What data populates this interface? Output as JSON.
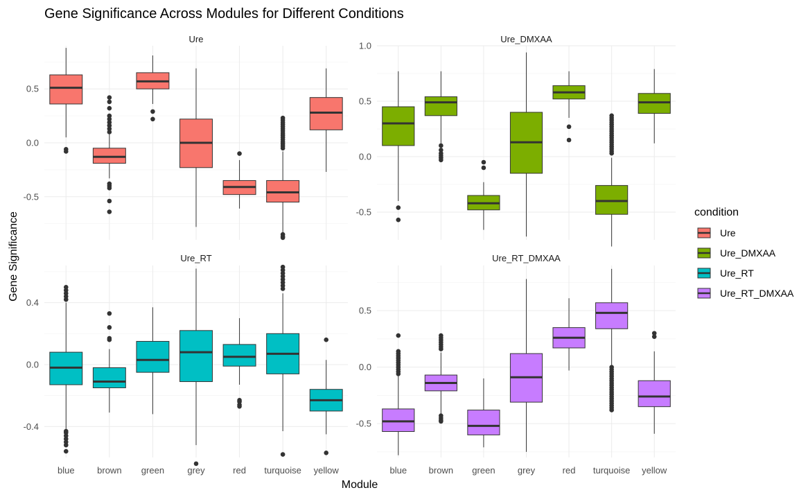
{
  "chart_data": {
    "type": "boxplot",
    "title": "Gene Significance Across Modules for Different Conditions",
    "xlabel": "Module",
    "ylabel": "Gene Significance",
    "categories": [
      "blue",
      "brown",
      "green",
      "grey",
      "red",
      "turquoise",
      "yellow"
    ],
    "legend": {
      "title": "condition",
      "placement": "right",
      "entries": [
        {
          "label": "Ure",
          "color": "#F8766D"
        },
        {
          "label": "Ure_DMXAA",
          "color": "#7CAE00"
        },
        {
          "label": "Ure_RT",
          "color": "#00BFC4"
        },
        {
          "label": "Ure_RT_DMXAA",
          "color": "#C77CFF"
        }
      ]
    },
    "grid": true,
    "panels": [
      {
        "name": "Ure",
        "color": "#F8766D",
        "ylim": [
          -0.9,
          0.9
        ],
        "yticks": [
          -0.5,
          0.0,
          0.5
        ],
        "ytick_labels": [
          "-0.5",
          "0.0",
          "0.5"
        ],
        "show_y_labels": true,
        "show_x_labels": false,
        "boxes": [
          {
            "module": "blue",
            "q1": 0.36,
            "median": 0.51,
            "q3": 0.63,
            "lower": 0.05,
            "upper": 0.88,
            "outliers": [
              -0.06,
              -0.08
            ]
          },
          {
            "module": "brown",
            "q1": -0.19,
            "median": -0.13,
            "q3": -0.05,
            "lower": -0.33,
            "upper": 0.08,
            "outliers": [
              0.42,
              0.38,
              0.32,
              0.25,
              0.22,
              0.19,
              0.16,
              0.13,
              0.1,
              -0.38,
              -0.4,
              -0.42,
              -0.54,
              -0.64
            ]
          },
          {
            "module": "green",
            "q1": 0.5,
            "median": 0.57,
            "q3": 0.65,
            "lower": 0.36,
            "upper": 0.81,
            "outliers": [
              0.29,
              0.22
            ]
          },
          {
            "module": "grey",
            "q1": -0.23,
            "median": 0.0,
            "q3": 0.22,
            "lower": -0.78,
            "upper": 0.69
          },
          {
            "module": "red",
            "q1": -0.48,
            "median": -0.41,
            "q3": -0.35,
            "lower": -0.61,
            "upper": -0.16,
            "outliers": [
              -0.1
            ]
          },
          {
            "module": "turquoise",
            "q1": -0.55,
            "median": -0.46,
            "q3": -0.35,
            "lower": -0.83,
            "upper": -0.08,
            "outliers": [
              0.23,
              0.21,
              0.19,
              0.17,
              0.15,
              0.13,
              0.11,
              0.09,
              0.07,
              0.05,
              0.03,
              0.01,
              -0.01,
              -0.03,
              -0.05,
              -0.85,
              -0.87,
              -0.88
            ]
          },
          {
            "module": "yellow",
            "q1": 0.12,
            "median": 0.28,
            "q3": 0.42,
            "lower": -0.27,
            "upper": 0.69
          }
        ]
      },
      {
        "name": "Ure_DMXAA",
        "color": "#7CAE00",
        "ylim": [
          -0.75,
          1.0
        ],
        "yticks": [
          -0.5,
          0.0,
          0.5,
          1.0
        ],
        "ytick_labels": [
          "-0.5",
          "0.0",
          "0.5",
          "1.0"
        ],
        "show_y_labels": true,
        "show_x_labels": false,
        "boxes": [
          {
            "module": "blue",
            "q1": 0.1,
            "median": 0.3,
            "q3": 0.45,
            "lower": -0.4,
            "upper": 0.77,
            "outliers": [
              -0.46,
              -0.57
            ]
          },
          {
            "module": "brown",
            "q1": 0.37,
            "median": 0.49,
            "q3": 0.54,
            "lower": 0.12,
            "upper": 0.77,
            "outliers": [
              0.1,
              0.06,
              0.03,
              0.01,
              -0.01,
              -0.03
            ]
          },
          {
            "module": "green",
            "q1": -0.48,
            "median": -0.42,
            "q3": -0.35,
            "lower": -0.66,
            "upper": -0.23,
            "outliers": [
              -0.05,
              -0.1
            ]
          },
          {
            "module": "grey",
            "q1": -0.15,
            "median": 0.13,
            "q3": 0.4,
            "lower": -0.72,
            "upper": 0.94
          },
          {
            "module": "red",
            "q1": 0.52,
            "median": 0.58,
            "q3": 0.64,
            "lower": 0.35,
            "upper": 0.77,
            "outliers": [
              0.27,
              0.15
            ]
          },
          {
            "module": "turquoise",
            "q1": -0.52,
            "median": -0.4,
            "q3": -0.26,
            "lower": -0.81,
            "upper": -0.01,
            "outliers": [
              0.37,
              0.35,
              0.33,
              0.31,
              0.29,
              0.27,
              0.25,
              0.23,
              0.21,
              0.19,
              0.17,
              0.15,
              0.13,
              0.11,
              0.09,
              0.07,
              0.05,
              0.03
            ]
          },
          {
            "module": "yellow",
            "q1": 0.39,
            "median": 0.49,
            "q3": 0.57,
            "lower": 0.12,
            "upper": 0.79
          }
        ]
      },
      {
        "name": "Ure_RT",
        "color": "#00BFC4",
        "ylim": [
          -0.6,
          0.64
        ],
        "yticks": [
          -0.4,
          0.0,
          0.4
        ],
        "ytick_labels": [
          "-0.4",
          "0.0",
          "0.4"
        ],
        "show_y_labels": true,
        "show_x_labels": true,
        "boxes": [
          {
            "module": "blue",
            "q1": -0.13,
            "median": -0.02,
            "q3": 0.08,
            "lower": -0.42,
            "upper": 0.4,
            "outliers": [
              0.5,
              0.48,
              0.46,
              0.44,
              0.42,
              -0.43,
              -0.44,
              -0.46,
              -0.48,
              -0.5,
              -0.52,
              -0.56
            ]
          },
          {
            "module": "brown",
            "q1": -0.15,
            "median": -0.11,
            "q3": -0.02,
            "lower": -0.31,
            "upper": 0.1,
            "outliers": [
              0.33,
              0.24,
              0.17,
              0.16
            ]
          },
          {
            "module": "green",
            "q1": -0.05,
            "median": 0.03,
            "q3": 0.15,
            "lower": -0.32,
            "upper": 0.37
          },
          {
            "module": "grey",
            "q1": -0.11,
            "median": 0.08,
            "q3": 0.22,
            "lower": -0.52,
            "upper": 0.62,
            "outliers": [
              -0.64
            ]
          },
          {
            "module": "red",
            "q1": -0.01,
            "median": 0.05,
            "q3": 0.13,
            "lower": -0.13,
            "upper": 0.3,
            "outliers": [
              -0.23,
              -0.24,
              -0.26,
              -0.27
            ]
          },
          {
            "module": "turquoise",
            "q1": -0.06,
            "median": 0.07,
            "q3": 0.2,
            "lower": -0.43,
            "upper": 0.46,
            "outliers": [
              0.63,
              0.61,
              0.59,
              0.57,
              0.55,
              0.53,
              0.51,
              0.49,
              -0.58
            ]
          },
          {
            "module": "yellow",
            "q1": -0.3,
            "median": -0.23,
            "q3": -0.16,
            "lower": -0.45,
            "upper": 0.03,
            "outliers": [
              0.16,
              -0.57
            ]
          }
        ]
      },
      {
        "name": "Ure_RT_DMXAA",
        "color": "#C77CFF",
        "ylim": [
          -0.8,
          0.9
        ],
        "yticks": [
          -0.5,
          0.0,
          0.5
        ],
        "ytick_labels": [
          "-0.5",
          "0.0",
          "0.5"
        ],
        "show_y_labels": true,
        "show_x_labels": true,
        "boxes": [
          {
            "module": "blue",
            "q1": -0.57,
            "median": -0.48,
            "q3": -0.37,
            "lower": -0.78,
            "upper": -0.08,
            "outliers": [
              0.28,
              0.14,
              0.12,
              0.1,
              0.08,
              0.06,
              0.04,
              0.02,
              0.0,
              -0.02,
              -0.04,
              -0.06
            ]
          },
          {
            "module": "brown",
            "q1": -0.21,
            "median": -0.14,
            "q3": -0.07,
            "lower": -0.42,
            "upper": 0.13,
            "outliers": [
              0.28,
              0.26,
              0.24,
              0.22,
              0.2,
              0.18,
              0.16,
              -0.43,
              -0.45,
              -0.47,
              -0.48
            ]
          },
          {
            "module": "green",
            "q1": -0.6,
            "median": -0.52,
            "q3": -0.38,
            "lower": -0.71,
            "upper": -0.1
          },
          {
            "module": "grey",
            "q1": -0.31,
            "median": -0.09,
            "q3": 0.12,
            "lower": -0.75,
            "upper": 0.78
          },
          {
            "module": "red",
            "q1": 0.17,
            "median": 0.26,
            "q3": 0.35,
            "lower": -0.03,
            "upper": 0.61
          },
          {
            "module": "turquoise",
            "q1": 0.34,
            "median": 0.48,
            "q3": 0.57,
            "lower": 0.02,
            "upper": 0.87,
            "outliers": [
              0.0,
              -0.02,
              -0.04,
              -0.06,
              -0.08,
              -0.1,
              -0.12,
              -0.14,
              -0.16,
              -0.18,
              -0.2,
              -0.22,
              -0.24,
              -0.26,
              -0.28,
              -0.3,
              -0.32,
              -0.34,
              -0.36,
              -0.38
            ]
          },
          {
            "module": "yellow",
            "q1": -0.35,
            "median": -0.26,
            "q3": -0.12,
            "lower": -0.59,
            "upper": 0.14,
            "outliers": [
              0.3,
              0.27
            ]
          }
        ]
      }
    ]
  }
}
